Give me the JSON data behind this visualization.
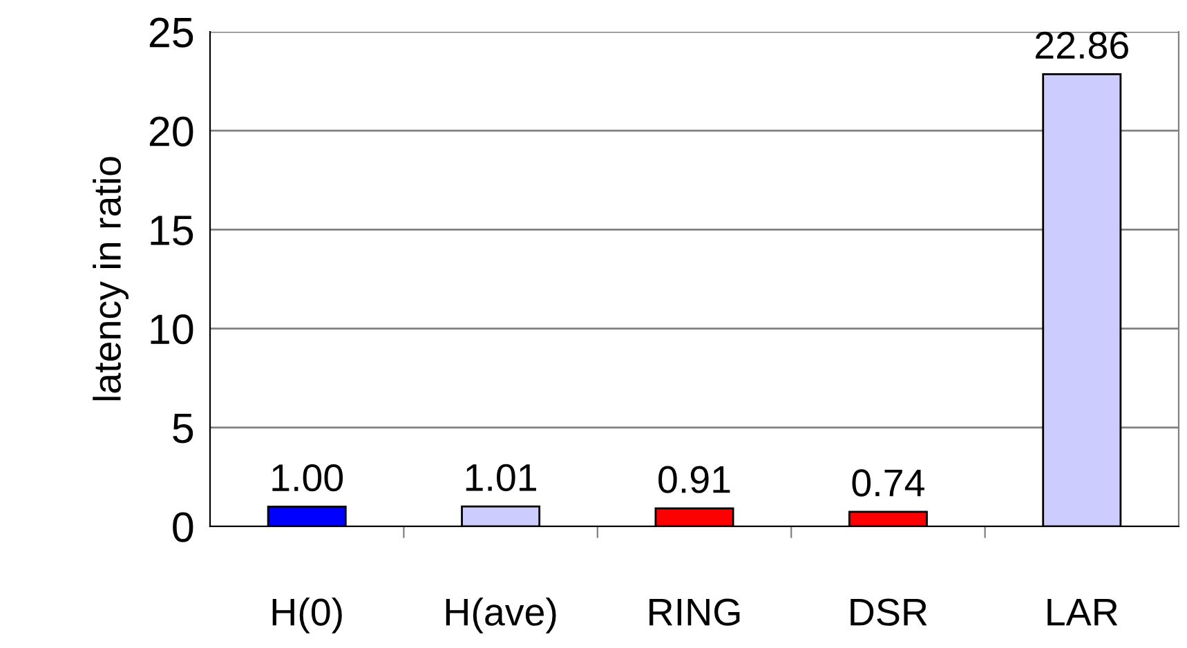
{
  "chart_data": {
    "type": "bar",
    "ylabel": "latency in ratio",
    "categories": [
      "H(0)",
      "H(ave)",
      "RING",
      "DSR",
      "LAR"
    ],
    "values": [
      1.0,
      1.01,
      0.91,
      0.74,
      22.86
    ],
    "value_labels": [
      "1.00",
      "1.01",
      "0.91",
      "0.74",
      "22.86"
    ],
    "colors": [
      "#0000ff",
      "#ccccff",
      "#ff0000",
      "#ff0000",
      "#ccccff"
    ],
    "ylim": [
      0,
      25
    ],
    "yticks": [
      0,
      5,
      10,
      15,
      20,
      25
    ],
    "grid": "y"
  }
}
